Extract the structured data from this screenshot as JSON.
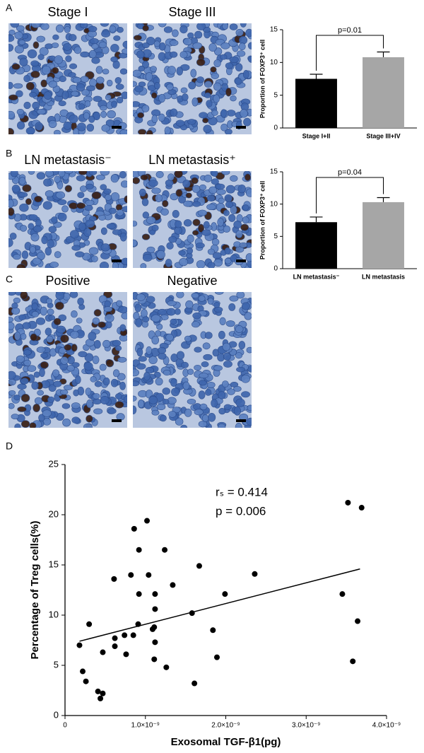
{
  "figure": {
    "panel_labels": [
      "A",
      "B",
      "C",
      "D"
    ],
    "image_labels": [
      "Stage I",
      "Stage III",
      "LN metastasis⁻",
      "LN metastasis⁺",
      "Positive",
      "Negative"
    ]
  },
  "chart_data": [
    {
      "type": "bar",
      "ylabel": "Proportion of FOXP3⁺ cell",
      "categories": [
        "Stage I+II",
        "Stage III+IV"
      ],
      "values": [
        7.5,
        10.8
      ],
      "errors": [
        0.7,
        0.8
      ],
      "colors": [
        "#000000",
        "#a6a6a6"
      ],
      "ylim": [
        0,
        15
      ],
      "yticks": [
        0,
        5,
        10,
        15
      ],
      "annotation": "p=0.01"
    },
    {
      "type": "bar",
      "ylabel": "Proportion of FOXP3⁺ cell",
      "categories": [
        "LN metastasis⁻",
        "LN metastasis"
      ],
      "values": [
        7.2,
        10.3
      ],
      "errors": [
        0.8,
        0.7
      ],
      "colors": [
        "#000000",
        "#a6a6a6"
      ],
      "ylim": [
        0,
        15
      ],
      "yticks": [
        0,
        5,
        10,
        15
      ],
      "annotation": "p=0.04"
    },
    {
      "type": "scatter",
      "xlabel": "Exosomal TGF-β1(pg)",
      "ylabel": "Percentage of Treg cells(%)",
      "annotations": [
        "rₛ = 0.414",
        "p = 0.006"
      ],
      "color": "#000000",
      "x": [
        1.8e-10,
        2.2e-10,
        2.6e-10,
        3e-10,
        4.1e-10,
        4.4e-10,
        4.7e-10,
        4.7e-10,
        6.1e-10,
        6.2e-10,
        6.2e-10,
        7.4e-10,
        7.6e-10,
        8.2e-10,
        8.5e-10,
        8.6e-10,
        9.2e-10,
        9.2e-10,
        9.1e-10,
        1.02e-09,
        1.04e-09,
        1.09e-09,
        1.11e-09,
        1.12e-09,
        1.12e-09,
        1.12e-09,
        1.11e-09,
        1.24e-09,
        1.26e-09,
        1.34e-09,
        1.58e-09,
        1.61e-09,
        1.67e-09,
        1.84e-09,
        1.89e-09,
        1.99e-09,
        2.36e-09,
        3.45e-09,
        3.52e-09,
        3.58e-09,
        3.64e-09,
        3.69e-09
      ],
      "y": [
        7.0,
        4.4,
        3.4,
        9.1,
        2.4,
        1.7,
        2.2,
        6.3,
        13.6,
        7.7,
        6.9,
        8.0,
        6.1,
        14.0,
        8.0,
        18.6,
        16.5,
        12.1,
        9.1,
        19.4,
        14.0,
        8.6,
        8.8,
        10.6,
        12.1,
        7.3,
        5.6,
        16.5,
        4.8,
        13.0,
        10.2,
        3.2,
        14.9,
        8.5,
        5.8,
        12.1,
        14.1,
        12.1,
        21.2,
        5.4,
        9.4,
        20.7
      ],
      "fit": {
        "x": [
          1.8e-10,
          3.67e-09
        ],
        "y": [
          7.4,
          14.6
        ]
      },
      "xlim": [
        0,
        4e-09
      ],
      "xticks": [
        0,
        {
          "value": 1e-09,
          "label": "1.0×10⁻⁹"
        },
        {
          "value": 2e-09,
          "label": "2.0×10⁻⁹"
        },
        {
          "value": 3e-09,
          "label": "3.0×10⁻⁹"
        },
        {
          "value": 4e-09,
          "label": "4.0×10⁻⁹"
        }
      ],
      "ylim": [
        0,
        25
      ],
      "yticks": [
        0,
        5,
        10,
        15,
        20,
        25
      ]
    }
  ]
}
